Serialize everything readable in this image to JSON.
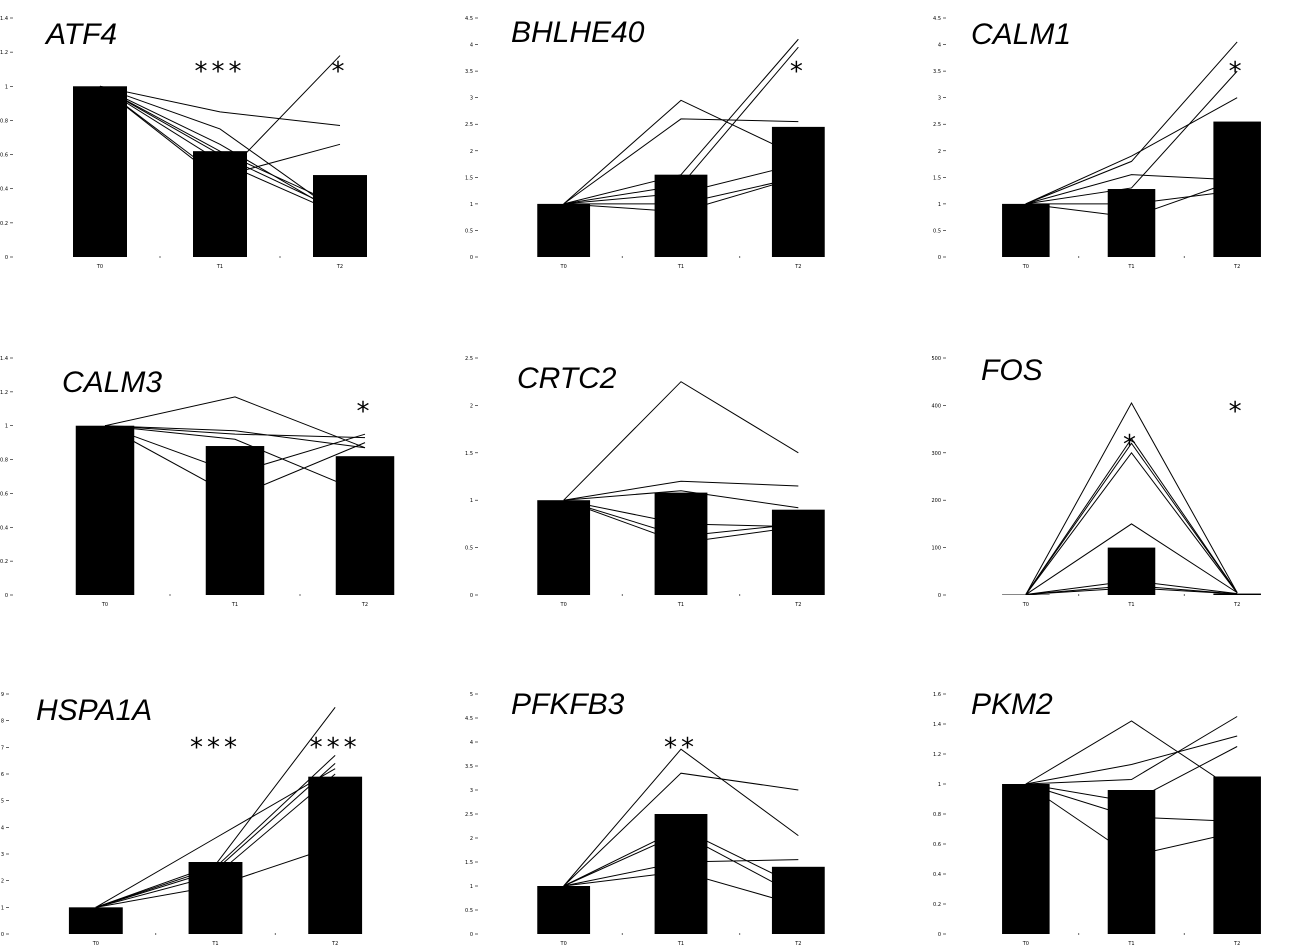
{
  "chart_data": [
    {
      "type": "bar",
      "title": "ATF4",
      "categories": [
        "T0",
        "T1",
        "T2"
      ],
      "values": [
        1.0,
        0.62,
        0.48
      ],
      "ylim": [
        0,
        1.4
      ],
      "yticks": [
        0,
        0.2,
        0.4,
        0.6,
        0.8,
        1,
        1.2,
        1.4
      ],
      "ytick_labels": [
        "0",
        "0.2",
        "0.4",
        "0.6",
        "0.8",
        "1",
        "1.2",
        "1.4"
      ],
      "lines": [
        [
          1,
          0.85,
          0.77
        ],
        [
          1,
          0.75,
          0.25
        ],
        [
          1,
          0.66,
          0.25
        ],
        [
          1,
          0.62,
          0.3
        ],
        [
          1,
          0.6,
          0.27
        ],
        [
          1,
          0.56,
          0.25
        ],
        [
          1,
          0.47,
          0.66
        ],
        [
          1,
          0.45,
          1.18
        ]
      ],
      "significance": [
        "",
        "***",
        "*"
      ],
      "grid": false
    },
    {
      "type": "bar",
      "title": "BHLHE40",
      "categories": [
        "T0",
        "T1",
        "T2"
      ],
      "values": [
        1.0,
        1.55,
        2.45
      ],
      "ylim": [
        0,
        4.5
      ],
      "yticks": [
        0,
        0.5,
        1,
        1.5,
        2,
        2.5,
        3,
        3.5,
        4,
        4.5
      ],
      "ytick_labels": [
        "0",
        "0.5",
        "1",
        "1.5",
        "2",
        "2.5",
        "3",
        "3.5",
        "4",
        "4.5"
      ],
      "lines": [
        [
          1,
          2.95,
          1.9
        ],
        [
          1,
          2.6,
          2.55
        ],
        [
          1,
          1.55,
          4.1
        ],
        [
          1,
          1.35,
          3.95
        ],
        [
          1,
          1.2,
          1.75
        ],
        [
          1,
          0.85,
          1.5
        ],
        [
          1,
          1.0,
          1.5
        ]
      ],
      "significance": [
        "",
        "",
        "*"
      ],
      "grid": false
    },
    {
      "type": "bar",
      "title": "CALM1",
      "categories": [
        "T0",
        "T1",
        "T2"
      ],
      "values": [
        1.0,
        1.28,
        2.55
      ],
      "ylim": [
        0,
        4.5
      ],
      "yticks": [
        0,
        0.5,
        1,
        1.5,
        2,
        2.5,
        3,
        3.5,
        4,
        4.5
      ],
      "ytick_labels": [
        "0",
        "0.5",
        "1",
        "1.5",
        "2",
        "2.5",
        "3",
        "3.5",
        "4",
        "4.5"
      ],
      "lines": [
        [
          1,
          1.9,
          3.0
        ],
        [
          1,
          1.8,
          4.05
        ],
        [
          1,
          1.55,
          1.45
        ],
        [
          1,
          1.3,
          3.5
        ],
        [
          1,
          1.0,
          1.25
        ],
        [
          1,
          0.75,
          1.45
        ]
      ],
      "significance": [
        "",
        "",
        "*"
      ],
      "grid": false
    },
    {
      "type": "bar",
      "title": "CALM3",
      "categories": [
        "T0",
        "T1",
        "T2"
      ],
      "values": [
        1.0,
        0.88,
        0.82
      ],
      "ylim": [
        0,
        1.4
      ],
      "yticks": [
        0,
        0.2,
        0.4,
        0.6,
        0.8,
        1,
        1.2,
        1.4
      ],
      "ytick_labels": [
        "0",
        "0.2",
        "0.4",
        "0.6",
        "0.8",
        "1",
        "1.2",
        "1.4"
      ],
      "lines": [
        [
          1,
          1.17,
          0.87
        ],
        [
          1,
          0.97,
          0.87
        ],
        [
          1,
          0.95,
          0.93
        ],
        [
          1,
          0.92,
          0.6
        ],
        [
          1,
          0.72,
          0.95
        ],
        [
          1,
          0.58,
          0.9
        ]
      ],
      "significance": [
        "",
        "",
        "*"
      ],
      "grid": false
    },
    {
      "type": "bar",
      "title": "CRTC2",
      "categories": [
        "T0",
        "T1",
        "T2"
      ],
      "values": [
        1.0,
        1.08,
        0.9
      ],
      "ylim": [
        0,
        2.5
      ],
      "yticks": [
        0,
        0.5,
        1,
        1.5,
        2,
        2.5
      ],
      "ytick_labels": [
        "0",
        "0.5",
        "1",
        "1.5",
        "2",
        "2.5"
      ],
      "lines": [
        [
          1,
          2.25,
          1.5
        ],
        [
          1,
          1.2,
          1.15
        ],
        [
          1,
          1.1,
          0.92
        ],
        [
          1,
          0.75,
          0.72
        ],
        [
          1,
          0.62,
          0.75
        ],
        [
          1,
          0.55,
          0.72
        ]
      ],
      "significance": [
        "",
        "",
        ""
      ],
      "grid": false
    },
    {
      "type": "bar",
      "title": "FOS",
      "categories": [
        "T0",
        "T1",
        "T2"
      ],
      "values": [
        1.0,
        100,
        3
      ],
      "ylim": [
        0,
        500
      ],
      "yticks": [
        0,
        100,
        200,
        300,
        400,
        500
      ],
      "ytick_labels": [
        "0",
        "100",
        "200",
        "300",
        "400",
        "500"
      ],
      "lines": [
        [
          1,
          405,
          5
        ],
        [
          1,
          330,
          5
        ],
        [
          1,
          320,
          5
        ],
        [
          1,
          300,
          4
        ],
        [
          1,
          150,
          5
        ],
        [
          1,
          30,
          3
        ],
        [
          1,
          20,
          2
        ],
        [
          1,
          15,
          2
        ]
      ],
      "significance": [
        "",
        "*",
        "*"
      ],
      "grid": false
    },
    {
      "type": "bar",
      "title": "HSPA1A",
      "categories": [
        "T0",
        "T1",
        "T2"
      ],
      "values": [
        1.0,
        2.7,
        5.9
      ],
      "ylim": [
        0,
        9
      ],
      "yticks": [
        0,
        1,
        2,
        3,
        4,
        5,
        6,
        7,
        8,
        9
      ],
      "ytick_labels": [
        "0",
        "1",
        "2",
        "3",
        "4",
        "5",
        "6",
        "7",
        "8",
        "9"
      ],
      "lines": [
        [
          1,
          3.6,
          6.2
        ],
        [
          1,
          2.6,
          8.5
        ],
        [
          1,
          2.5,
          6.7
        ],
        [
          1,
          2.4,
          6.4
        ],
        [
          1,
          2.2,
          6.0
        ],
        [
          1,
          1.8,
          3.3
        ]
      ],
      "significance": [
        "",
        "***",
        "***"
      ],
      "grid": false
    },
    {
      "type": "bar",
      "title": "PFKFB3",
      "categories": [
        "T0",
        "T1",
        "T2"
      ],
      "values": [
        1.0,
        2.5,
        1.4
      ],
      "ylim": [
        0,
        5
      ],
      "yticks": [
        0,
        0.5,
        1,
        1.5,
        2,
        2.5,
        3,
        3.5,
        4,
        4.5,
        5
      ],
      "ytick_labels": [
        "0",
        "0.5",
        "1",
        "1.5",
        "2",
        "2.5",
        "3",
        "3.5",
        "4",
        "4.5",
        "5"
      ],
      "lines": [
        [
          1,
          3.85,
          2.05
        ],
        [
          1,
          3.35,
          3.0
        ],
        [
          1,
          2.2,
          1.0
        ],
        [
          1,
          2.1,
          0.8
        ],
        [
          1,
          1.5,
          1.55
        ],
        [
          1,
          1.3,
          0.6
        ]
      ],
      "significance": [
        "",
        "**",
        ""
      ],
      "grid": false
    },
    {
      "type": "bar",
      "title": "PKM2",
      "categories": [
        "T0",
        "T1",
        "T2"
      ],
      "values": [
        1.0,
        0.96,
        1.05
      ],
      "ylim": [
        0,
        1.6
      ],
      "yticks": [
        0,
        0.2,
        0.4,
        0.6,
        0.8,
        1,
        1.2,
        1.4,
        1.6
      ],
      "ytick_labels": [
        "0",
        "0.2",
        "0.4",
        "0.6",
        "0.8",
        "1",
        "1.2",
        "1.4",
        "1.6"
      ],
      "lines": [
        [
          1,
          1.42,
          0.95
        ],
        [
          1,
          1.13,
          1.32
        ],
        [
          1,
          1.03,
          1.45
        ],
        [
          1,
          0.88,
          1.25
        ],
        [
          1,
          0.78,
          0.75
        ],
        [
          1,
          0.52,
          0.68
        ]
      ],
      "significance": [
        "",
        "",
        ""
      ],
      "grid": false
    }
  ]
}
